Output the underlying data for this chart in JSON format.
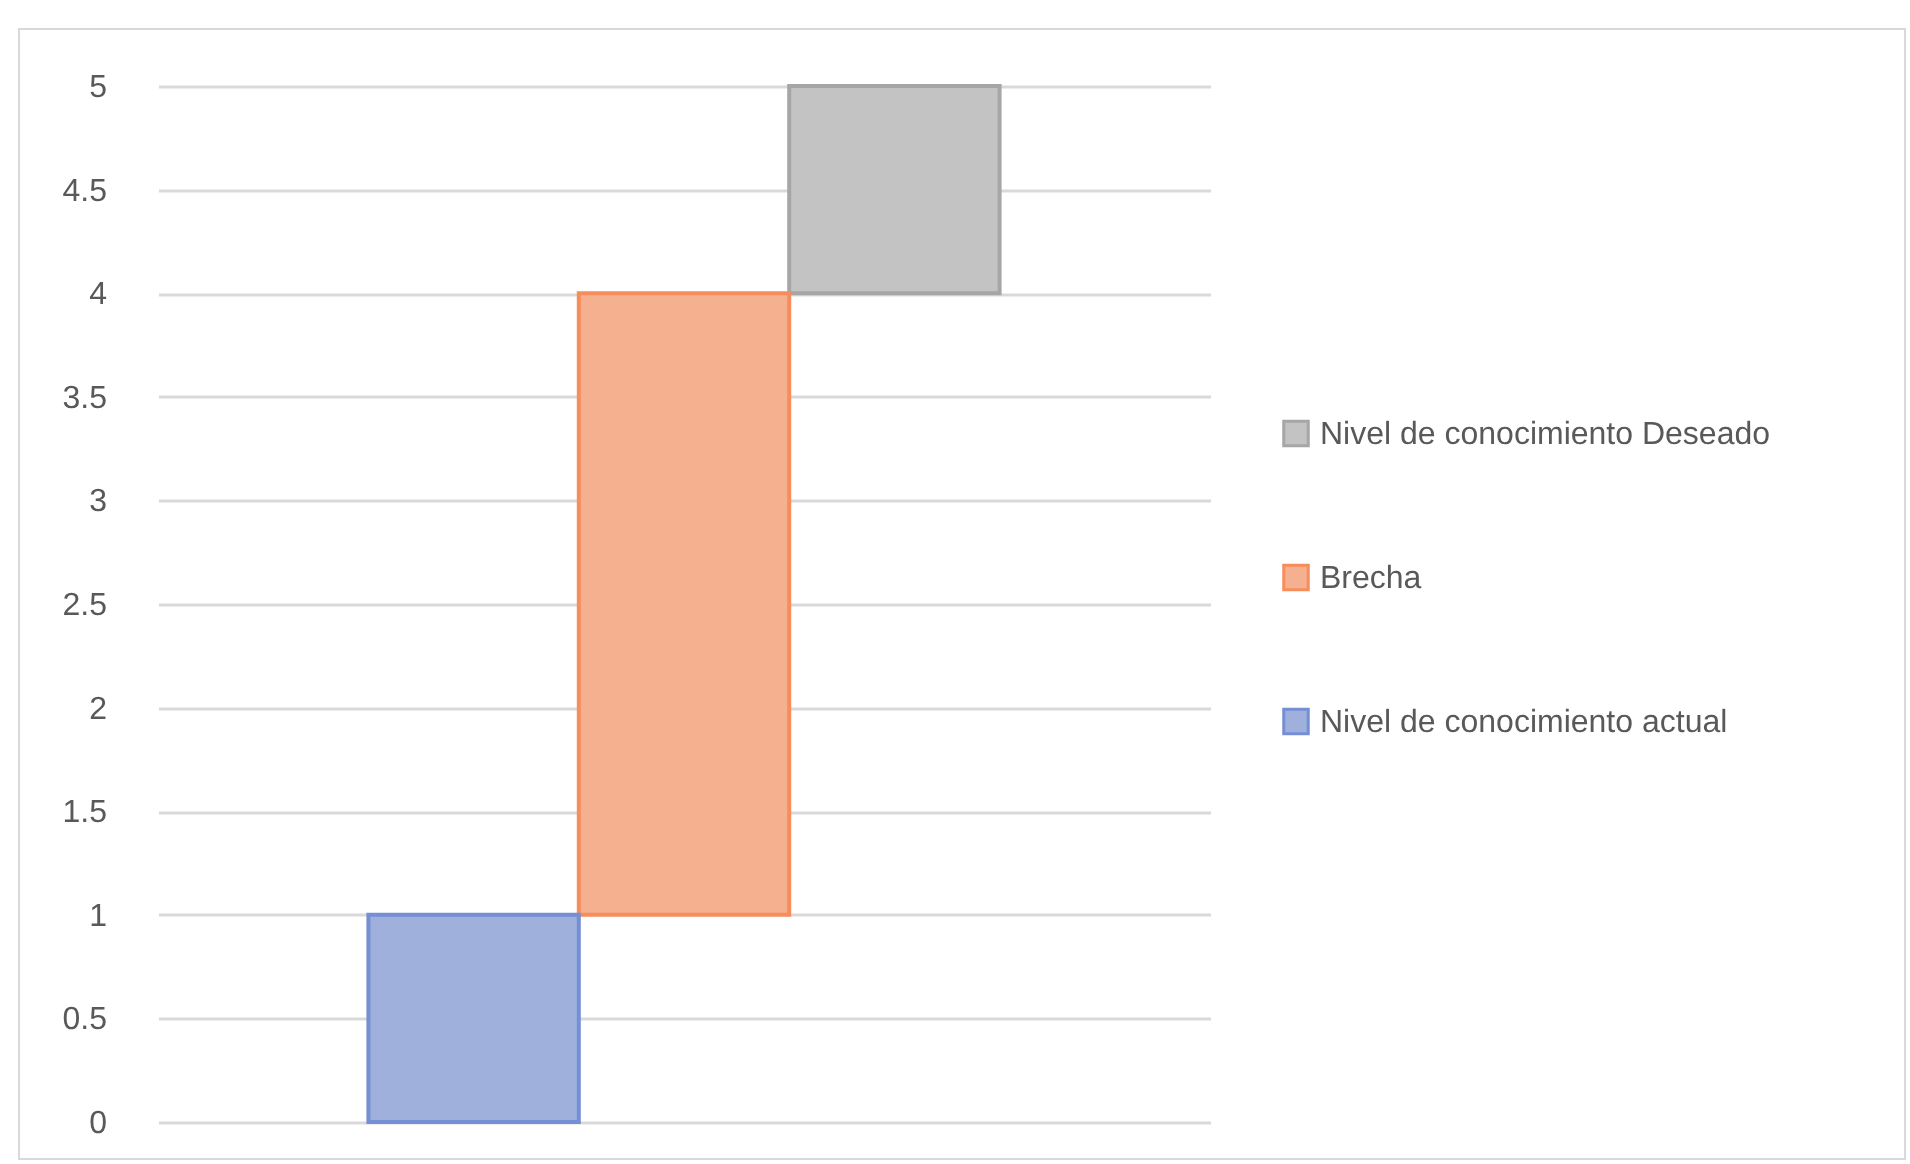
{
  "chart_data": {
    "type": "bar",
    "categories": [
      null,
      null,
      null
    ],
    "series": [
      {
        "name": "Nivel de conocimiento Deseado",
        "color": "#c3c3c3",
        "values": [
          null,
          null,
          1
        ],
        "base": [
          null,
          null,
          4
        ]
      },
      {
        "name": "Brecha",
        "color": "#f5b08f",
        "values": [
          null,
          3,
          null
        ],
        "base": [
          null,
          1,
          null
        ]
      },
      {
        "name": "Nivel de conocimiento actual",
        "color": "#9fb0dd",
        "values": [
          1,
          null,
          null
        ],
        "base": [
          0,
          null,
          null
        ]
      }
    ],
    "ylim": [
      0,
      5
    ],
    "yticks": [
      0,
      0.5,
      1,
      1.5,
      2,
      2.5,
      3,
      3.5,
      4,
      4.5,
      5
    ],
    "grid": "y",
    "legend": "right",
    "tick_labels": "y"
  }
}
